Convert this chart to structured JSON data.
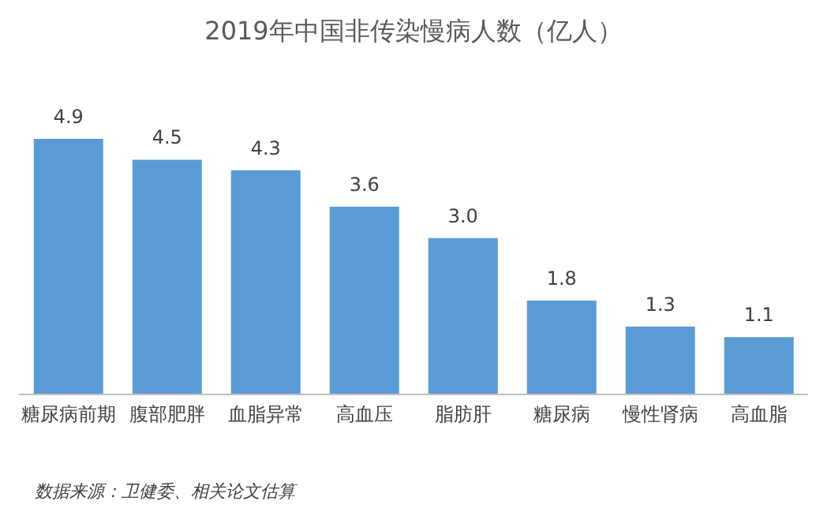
{
  "chart_data": {
    "type": "bar",
    "title": "2019年中国非传染慢病人数（亿人）",
    "categories": [
      "糖尿病前期",
      "腹部肥胖",
      "血脂异常",
      "高血压",
      "脂肪肝",
      "糖尿病",
      "慢性肾病",
      "高血脂"
    ],
    "values": [
      4.9,
      4.5,
      4.3,
      3.6,
      3.0,
      1.8,
      1.3,
      1.1
    ],
    "value_labels": [
      "4.9",
      "4.5",
      "4.3",
      "3.6",
      "3.0",
      "1.8",
      "1.3",
      "1.1"
    ],
    "color": "#5b9bd5",
    "annotations": [
      "数据来源：卫健委、相关论文估算"
    ]
  }
}
